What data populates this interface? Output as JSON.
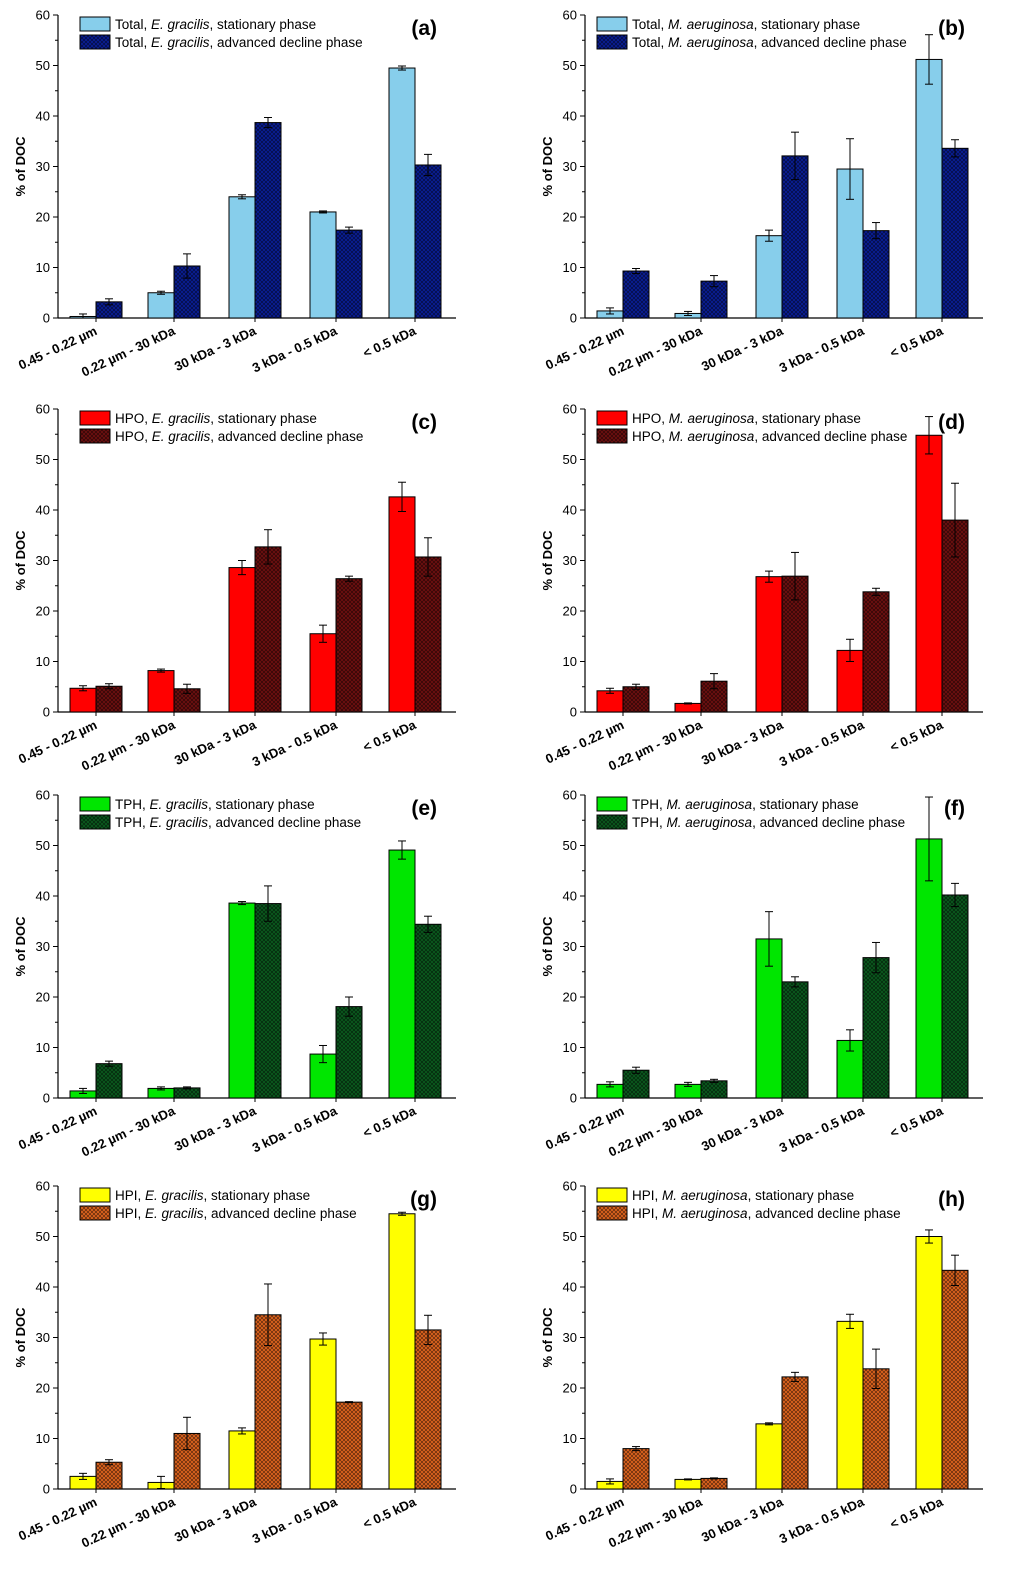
{
  "chart_data": [
    {
      "panel_label": "(a)",
      "type": "bar",
      "title": "",
      "xlabel": "",
      "ylabel": "% of DOC",
      "ylim": [
        0,
        60
      ],
      "yticks": [
        0,
        10,
        20,
        30,
        40,
        50,
        60
      ],
      "categories": [
        "0.45 - 0.22 µm",
        "0.22 µm - 30 kDa",
        "30 kDa - 3 kDa",
        "3 kDa - 0.5 kDa",
        "< 0.5 kDa"
      ],
      "series": [
        {
          "legend_prefix": "Total, ",
          "legend_species": "E. gracilis",
          "legend_suffix": ", stationary phase",
          "color": "#87ceeb",
          "pattern": "none",
          "values": [
            0.3,
            5.0,
            24.0,
            21.0,
            49.5
          ],
          "errors": [
            0.5,
            0.3,
            0.4,
            0.2,
            0.4
          ]
        },
        {
          "legend_prefix": "Total, ",
          "legend_species": "E. gracilis",
          "legend_suffix": ", advanced decline phase",
          "color": "#0a1e96",
          "pattern": "crosshatch",
          "values": [
            3.2,
            10.3,
            38.7,
            17.4,
            30.3
          ],
          "errors": [
            0.6,
            2.4,
            1.0,
            0.6,
            2.1
          ]
        }
      ]
    },
    {
      "panel_label": "(b)",
      "type": "bar",
      "title": "",
      "xlabel": "",
      "ylabel": "% of DOC",
      "ylim": [
        0,
        60
      ],
      "yticks": [
        0,
        10,
        20,
        30,
        40,
        50,
        60
      ],
      "categories": [
        "0.45 - 0.22 µm",
        "0.22 µm - 30 kDa",
        "30 kDa - 3 kDa",
        "3 kDa - 0.5 kDa",
        "< 0.5 kDa"
      ],
      "series": [
        {
          "legend_prefix": "Total, ",
          "legend_species": "M. aeruginosa",
          "legend_suffix": ", stationary phase",
          "color": "#87ceeb",
          "pattern": "none",
          "values": [
            1.4,
            0.9,
            16.3,
            29.5,
            51.2
          ],
          "errors": [
            0.6,
            0.4,
            1.1,
            6.0,
            4.9
          ]
        },
        {
          "legend_prefix": "Total, ",
          "legend_species": "M. aeruginosa",
          "legend_suffix": ", advanced decline phase",
          "color": "#0a1e96",
          "pattern": "crosshatch",
          "values": [
            9.3,
            7.3,
            32.1,
            17.3,
            33.6
          ],
          "errors": [
            0.5,
            1.1,
            4.7,
            1.6,
            1.7
          ]
        }
      ]
    },
    {
      "panel_label": "(c)",
      "type": "bar",
      "title": "",
      "xlabel": "",
      "ylabel": "% of DOC",
      "ylim": [
        0,
        60
      ],
      "yticks": [
        0,
        10,
        20,
        30,
        40,
        50,
        60
      ],
      "categories": [
        "0.45 - 0.22 µm",
        "0.22 µm - 30 kDa",
        "30 kDa - 3 kDa",
        "3 kDa - 0.5 kDa",
        "< 0.5 kDa"
      ],
      "series": [
        {
          "legend_prefix": "HPO, ",
          "legend_species": "E. gracilis",
          "legend_suffix": ", stationary phase",
          "color": "#ff0000",
          "pattern": "none",
          "values": [
            4.7,
            8.2,
            28.6,
            15.5,
            42.6
          ],
          "errors": [
            0.5,
            0.3,
            1.4,
            1.7,
            2.9
          ]
        },
        {
          "legend_prefix": "HPO, ",
          "legend_species": "E. gracilis",
          "legend_suffix": ", advanced decline phase",
          "color": "#6e1010",
          "pattern": "crosshatch",
          "values": [
            5.1,
            4.6,
            32.7,
            26.4,
            30.7
          ],
          "errors": [
            0.5,
            0.9,
            3.4,
            0.5,
            3.8
          ]
        }
      ]
    },
    {
      "panel_label": "(d)",
      "type": "bar",
      "title": "",
      "xlabel": "",
      "ylabel": "% of DOC",
      "ylim": [
        0,
        60
      ],
      "yticks": [
        0,
        10,
        20,
        30,
        40,
        50,
        60
      ],
      "categories": [
        "0.45 - 0.22 µm",
        "0.22 µm - 30 kDa",
        "30 kDa - 3 kDa",
        "3 kDa - 0.5 kDa",
        "< 0.5 kDa"
      ],
      "series": [
        {
          "legend_prefix": "HPO, ",
          "legend_species": "M. aeruginosa",
          "legend_suffix": ", stationary phase",
          "color": "#ff0000",
          "pattern": "none",
          "values": [
            4.2,
            1.7,
            26.8,
            12.2,
            54.8
          ],
          "errors": [
            0.5,
            0.1,
            1.1,
            2.2,
            3.7
          ]
        },
        {
          "legend_prefix": "HPO, ",
          "legend_species": "M. aeruginosa",
          "legend_suffix": ", advanced decline phase",
          "color": "#6e1010",
          "pattern": "crosshatch",
          "values": [
            5.0,
            6.1,
            26.9,
            23.8,
            38.0
          ],
          "errors": [
            0.5,
            1.5,
            4.7,
            0.7,
            7.3
          ]
        }
      ]
    },
    {
      "panel_label": "(e)",
      "type": "bar",
      "title": "",
      "xlabel": "",
      "ylabel": "% of DOC",
      "ylim": [
        0,
        60
      ],
      "yticks": [
        0,
        10,
        20,
        30,
        40,
        50,
        60
      ],
      "categories": [
        "0.45 - 0.22 µm",
        "0.22 µm - 30 kDa",
        "30 kDa - 3 kDa",
        "3 kDa - 0.5 kDa",
        "< 0.5 kDa"
      ],
      "series": [
        {
          "legend_prefix": "TPH, ",
          "legend_species": "E. gracilis",
          "legend_suffix": ", stationary phase",
          "color": "#00e600",
          "pattern": "none",
          "values": [
            1.4,
            1.9,
            38.6,
            8.7,
            49.1
          ],
          "errors": [
            0.5,
            0.3,
            0.3,
            1.7,
            1.8
          ]
        },
        {
          "legend_prefix": "TPH, ",
          "legend_species": "E. gracilis",
          "legend_suffix": ", advanced decline phase",
          "color": "#0b5a1e",
          "pattern": "crosshatch",
          "values": [
            6.8,
            2.0,
            38.5,
            18.1,
            34.4
          ],
          "errors": [
            0.5,
            0.2,
            3.5,
            1.9,
            1.6
          ]
        }
      ]
    },
    {
      "panel_label": "(f)",
      "type": "bar",
      "title": "",
      "xlabel": "",
      "ylabel": "% of DOC",
      "ylim": [
        0,
        60
      ],
      "yticks": [
        0,
        10,
        20,
        30,
        40,
        50,
        60
      ],
      "categories": [
        "0.45 - 0.22 µm",
        "0.22 µm - 30 kDa",
        "30 kDa - 3 kDa",
        "3 kDa - 0.5 kDa",
        "< 0.5 kDa"
      ],
      "series": [
        {
          "legend_prefix": "TPH, ",
          "legend_species": "M. aeruginosa",
          "legend_suffix": ", stationary phase",
          "color": "#00e600",
          "pattern": "none",
          "values": [
            2.7,
            2.7,
            31.5,
            11.4,
            51.3
          ],
          "errors": [
            0.5,
            0.4,
            5.4,
            2.1,
            8.3
          ]
        },
        {
          "legend_prefix": "TPH, ",
          "legend_species": "M. aeruginosa",
          "legend_suffix": ", advanced decline phase",
          "color": "#0b5a1e",
          "pattern": "crosshatch",
          "values": [
            5.5,
            3.4,
            23.0,
            27.8,
            40.2
          ],
          "errors": [
            0.6,
            0.3,
            1.0,
            3.0,
            2.3
          ]
        }
      ]
    },
    {
      "panel_label": "(g)",
      "type": "bar",
      "title": "",
      "xlabel": "",
      "ylabel": "% of DOC",
      "ylim": [
        0,
        60
      ],
      "yticks": [
        0,
        10,
        20,
        30,
        40,
        50,
        60
      ],
      "categories": [
        "0.45 - 0.22 µm",
        "0.22 µm - 30 kDa",
        "30 kDa - 3 kDa",
        "3 kDa - 0.5 kDa",
        "< 0.5 kDa"
      ],
      "series": [
        {
          "legend_prefix": "HPI, ",
          "legend_species": "E. gracilis",
          "legend_suffix": ", stationary phase",
          "color": "#ffff00",
          "pattern": "none",
          "values": [
            2.5,
            1.3,
            11.5,
            29.7,
            54.5
          ],
          "errors": [
            0.6,
            1.2,
            0.6,
            1.2,
            0.3
          ]
        },
        {
          "legend_prefix": "HPI, ",
          "legend_species": "E. gracilis",
          "legend_suffix": ", advanced decline phase",
          "color": "#e0641e",
          "pattern": "crosshatch",
          "values": [
            5.3,
            11.0,
            34.5,
            17.2,
            31.5
          ],
          "errors": [
            0.5,
            3.2,
            6.1,
            0.1,
            2.9
          ]
        }
      ]
    },
    {
      "panel_label": "(h)",
      "type": "bar",
      "title": "",
      "xlabel": "",
      "ylabel": "% of DOC",
      "ylim": [
        0,
        60
      ],
      "yticks": [
        0,
        10,
        20,
        30,
        40,
        50,
        60
      ],
      "categories": [
        "0.45 - 0.22 µm",
        "0.22 µm - 30 kDa",
        "30 kDa - 3 kDa",
        "3 kDa - 0.5 kDa",
        "< 0.5 kDa"
      ],
      "series": [
        {
          "legend_prefix": "HPI, ",
          "legend_species": "M. aeruginosa",
          "legend_suffix": ", stationary phase",
          "color": "#ffff00",
          "pattern": "none",
          "values": [
            1.5,
            1.9,
            12.9,
            33.2,
            50.0
          ],
          "errors": [
            0.5,
            0.1,
            0.2,
            1.4,
            1.3
          ]
        },
        {
          "legend_prefix": "HPI, ",
          "legend_species": "M. aeruginosa",
          "legend_suffix": ", advanced decline phase",
          "color": "#e0641e",
          "pattern": "crosshatch",
          "values": [
            8.0,
            2.1,
            22.2,
            23.8,
            43.3
          ],
          "errors": [
            0.4,
            0.1,
            0.9,
            3.9,
            3.0
          ]
        }
      ]
    }
  ]
}
